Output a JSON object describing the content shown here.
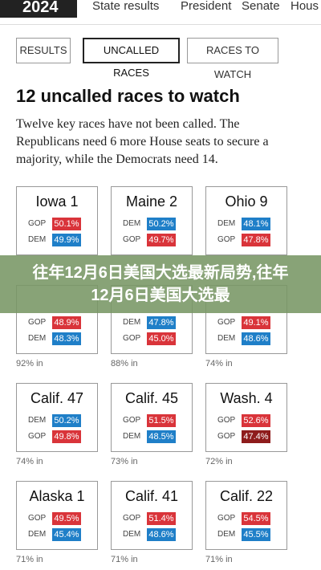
{
  "nav": {
    "logo": "2024",
    "tabs": [
      "State results",
      "President",
      "Senate",
      "Hous"
    ]
  },
  "buttons": [
    {
      "label": "RESULTS",
      "active": false
    },
    {
      "label": "UNCALLED RACES",
      "active": true
    },
    {
      "label": "RACES TO WATCH",
      "active": false
    }
  ],
  "heading": "12 uncalled races to watch",
  "intro": "Twelve key races have not been called. The Republicans need 6 more House seats to secure a majority, while the Democrats need 14.",
  "cards": [
    {
      "name": "Iowa 1",
      "rows": [
        {
          "party": "GOP",
          "pct": "50.1%",
          "color": "#d9343a"
        },
        {
          "party": "DEM",
          "pct": "49.9%",
          "color": "#1f7fc8"
        }
      ]
    },
    {
      "name": "Maine 2",
      "rows": [
        {
          "party": "DEM",
          "pct": "50.2%",
          "color": "#1f7fc8"
        },
        {
          "party": "GOP",
          "pct": "49.7%",
          "color": "#d9343a"
        }
      ]
    },
    {
      "name": "Ohio 9",
      "rows": [
        {
          "party": "DEM",
          "pct": "48.1%",
          "color": "#1f7fc8"
        },
        {
          "party": "GOP",
          "pct": "47.8%",
          "color": "#d9343a"
        }
      ]
    },
    {
      "rows": [
        {
          "party": "GOP",
          "pct": "48.9%",
          "color": "#d9343a"
        },
        {
          "party": "DEM",
          "pct": "48.3%",
          "color": "#1f7fc8"
        }
      ],
      "reporting": "92% in"
    },
    {
      "rows": [
        {
          "party": "DEM",
          "pct": "47.8%",
          "color": "#1f7fc8"
        },
        {
          "party": "GOP",
          "pct": "45.0%",
          "color": "#d9343a"
        }
      ],
      "reporting": "88% in"
    },
    {
      "rows": [
        {
          "party": "GOP",
          "pct": "49.1%",
          "color": "#d9343a"
        },
        {
          "party": "DEM",
          "pct": "48.6%",
          "color": "#1f7fc8"
        }
      ],
      "reporting": "74% in"
    },
    {
      "name": "Calif. 47",
      "rows": [
        {
          "party": "DEM",
          "pct": "50.2%",
          "color": "#1f7fc8"
        },
        {
          "party": "GOP",
          "pct": "49.8%",
          "color": "#d9343a"
        }
      ],
      "reporting": "74% in"
    },
    {
      "name": "Calif. 45",
      "rows": [
        {
          "party": "GOP",
          "pct": "51.5%",
          "color": "#d9343a"
        },
        {
          "party": "DEM",
          "pct": "48.5%",
          "color": "#1f7fc8"
        }
      ],
      "reporting": "73% in"
    },
    {
      "name": "Wash. 4",
      "rows": [
        {
          "party": "GOP",
          "pct": "52.6%",
          "color": "#d9343a"
        },
        {
          "party": "GOP",
          "pct": "47.4%",
          "color": "#8e1c1c"
        }
      ],
      "reporting": "72% in"
    },
    {
      "name": "Alaska 1",
      "rows": [
        {
          "party": "GOP",
          "pct": "49.5%",
          "color": "#d9343a"
        },
        {
          "party": "DEM",
          "pct": "45.4%",
          "color": "#1f7fc8"
        }
      ],
      "reporting": "71% in"
    },
    {
      "name": "Calif. 41",
      "rows": [
        {
          "party": "GOP",
          "pct": "51.4%",
          "color": "#d9343a"
        },
        {
          "party": "DEM",
          "pct": "48.6%",
          "color": "#1f7fc8"
        }
      ],
      "reporting": "71% in"
    },
    {
      "name": "Calif. 22",
      "rows": [
        {
          "party": "GOP",
          "pct": "54.5%",
          "color": "#d9343a"
        },
        {
          "party": "DEM",
          "pct": "45.5%",
          "color": "#1f7fc8"
        }
      ],
      "reporting": "71% in"
    }
  ],
  "banner": "往年12月6日美国大选最新局势,往年12月6日美国大选最"
}
